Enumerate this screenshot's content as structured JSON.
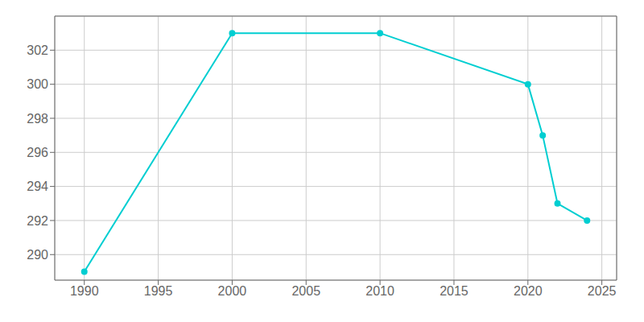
{
  "chart_data": {
    "type": "line",
    "x": [
      1990,
      2000,
      2010,
      2020,
      2021,
      2022,
      2024
    ],
    "values": [
      289,
      303,
      303,
      300,
      297,
      293,
      292
    ],
    "color": "#00CED1",
    "marker": "o",
    "xlim": [
      1988,
      2026
    ],
    "ylim": [
      288.5,
      304
    ],
    "xticks": [
      1990,
      1995,
      2000,
      2005,
      2010,
      2015,
      2020,
      2025
    ],
    "yticks": [
      290,
      292,
      294,
      296,
      298,
      300,
      302
    ],
    "grid": true
  }
}
